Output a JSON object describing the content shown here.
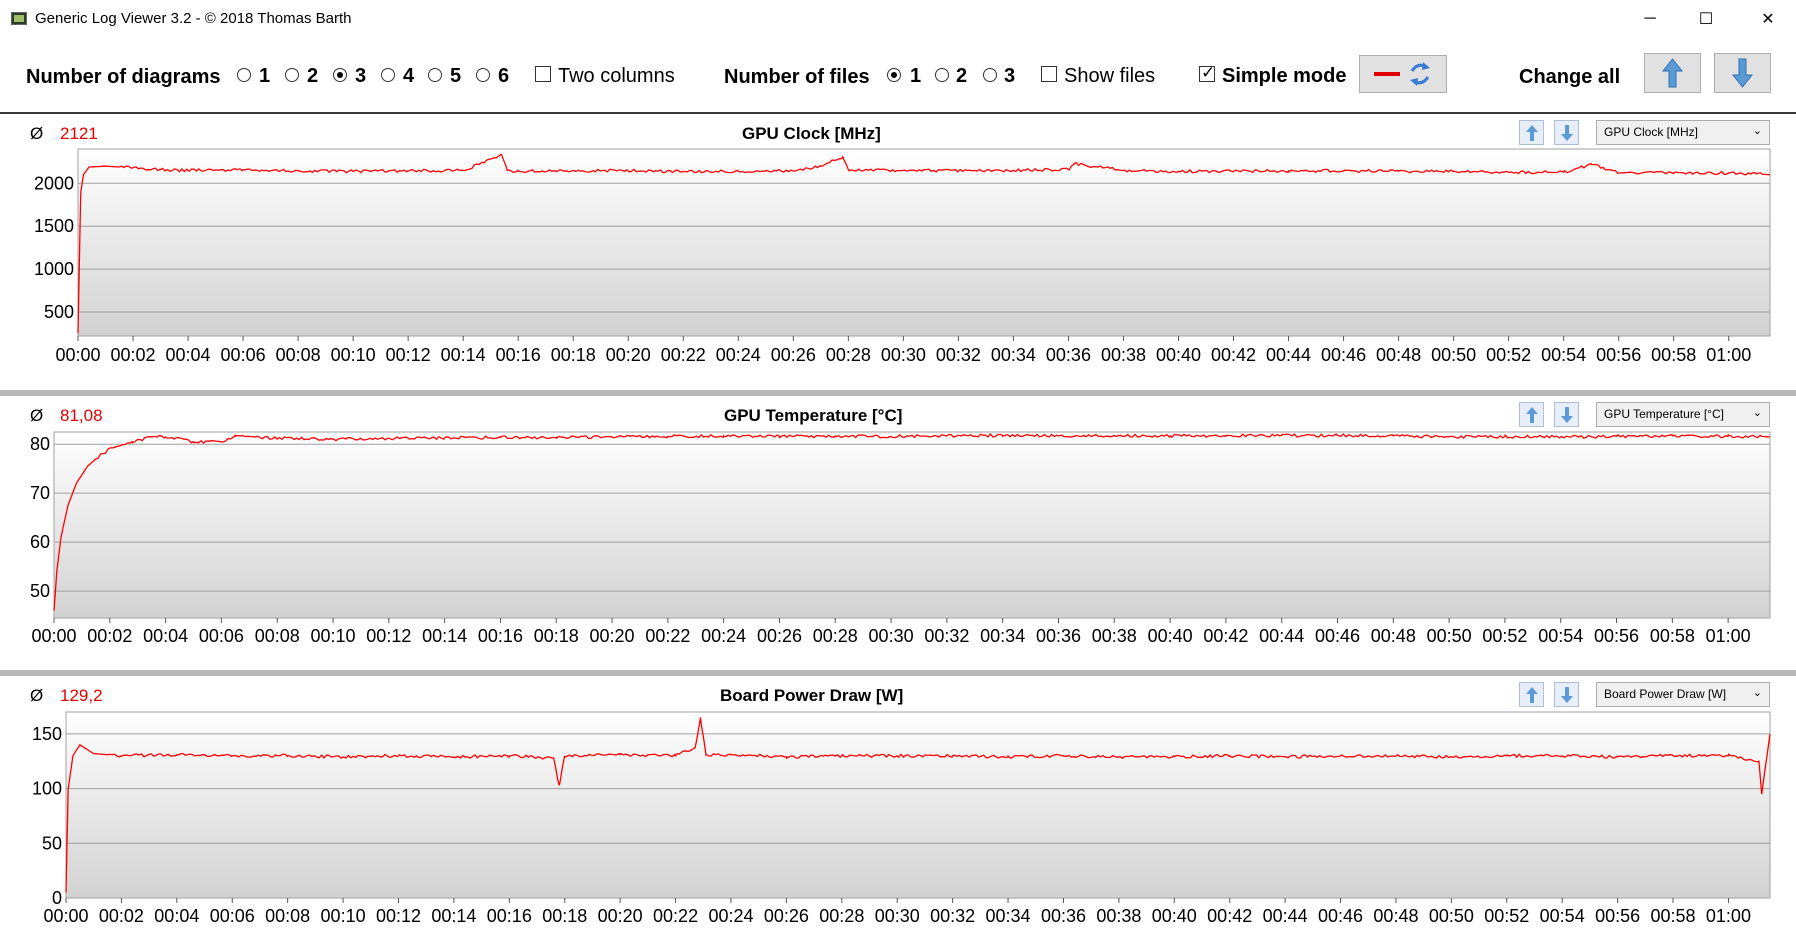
{
  "window": {
    "title": "Generic Log Viewer 3.2 - © 2018 Thomas Barth",
    "minimize_glyph": "─",
    "maximize_glyph": "☐",
    "close_glyph": "✕"
  },
  "toolbar": {
    "num_diagrams_label": "Number of diagrams",
    "diagram_options": [
      "1",
      "2",
      "3",
      "4",
      "5",
      "6"
    ],
    "diagram_selected": "3",
    "two_columns_label": "Two columns",
    "two_columns_checked": false,
    "num_files_label": "Number of files",
    "file_options": [
      "1",
      "2",
      "3"
    ],
    "file_selected": "1",
    "show_files_label": "Show files",
    "show_files_checked": false,
    "simple_mode_label": "Simple mode",
    "simple_mode_checked": true,
    "change_all_label": "Change all",
    "line_color": "#e00000",
    "icons": [
      "red-line-icon",
      "refresh-icon",
      "arrow-up-icon",
      "arrow-down-icon"
    ]
  },
  "colors": {
    "series": "#ff0000",
    "average": "#e00000",
    "plot_top": "#ffffff",
    "plot_bottom": "#d2d2d2",
    "grid": "#a0a0a0",
    "button_blue": "#5b9bd5"
  },
  "time_ticks": [
    "00:00",
    "00:02",
    "00:04",
    "00:06",
    "00:08",
    "00:10",
    "00:12",
    "00:14",
    "00:16",
    "00:18",
    "00:20",
    "00:22",
    "00:24",
    "00:26",
    "00:28",
    "00:30",
    "00:32",
    "00:34",
    "00:36",
    "00:38",
    "00:40",
    "00:42",
    "00:44",
    "00:46",
    "00:48",
    "00:50",
    "00:52",
    "00:54",
    "00:56",
    "00:58",
    "01:00"
  ],
  "charts": [
    {
      "average_symbol": "Ø",
      "average": "2121",
      "title": "GPU Clock [MHz]",
      "select_value": "GPU Clock [MHz]"
    },
    {
      "average_symbol": "Ø",
      "average": "81,08",
      "title": "GPU Temperature [°C]",
      "select_value": "GPU Temperature [°C]"
    },
    {
      "average_symbol": "Ø",
      "average": "129,2",
      "title": "Board Power Draw [W]",
      "select_value": "Board Power Draw [W]"
    }
  ],
  "chart_data": [
    {
      "type": "line",
      "title": "GPU Clock [MHz]",
      "x_unit": "minutes",
      "xlim": [
        0,
        61.5
      ],
      "ylim": [
        220,
        2400
      ],
      "yticks": [
        500,
        1000,
        1500,
        2000
      ],
      "grid": true,
      "series": [
        {
          "x": [
            0,
            0.1,
            0.2,
            0.4,
            1,
            2,
            3,
            4,
            6,
            8,
            10,
            12,
            14,
            15.4,
            15.6,
            16,
            18,
            20,
            22,
            24,
            26,
            27,
            27.8,
            28,
            30,
            32,
            34,
            36,
            36.2,
            38,
            40,
            42,
            44,
            46,
            48,
            50,
            52,
            54,
            55,
            56,
            58,
            60,
            61,
            61.5
          ],
          "y": [
            250,
            1900,
            2100,
            2190,
            2200,
            2180,
            2160,
            2150,
            2160,
            2145,
            2140,
            2145,
            2150,
            2330,
            2150,
            2140,
            2150,
            2145,
            2140,
            2140,
            2145,
            2200,
            2310,
            2160,
            2150,
            2145,
            2150,
            2160,
            2230,
            2150,
            2140,
            2140,
            2145,
            2145,
            2140,
            2140,
            2130,
            2130,
            2220,
            2120,
            2120,
            2120,
            2110,
            2100
          ]
        }
      ]
    },
    {
      "type": "line",
      "title": "GPU Temperature [°C]",
      "x_unit": "minutes",
      "xlim": [
        0,
        61.5
      ],
      "ylim": [
        44.5,
        82.5
      ],
      "yticks": [
        50,
        60,
        70,
        80
      ],
      "grid": true,
      "series": [
        {
          "x": [
            0,
            0.1,
            0.25,
            0.5,
            0.8,
            1.2,
            1.7,
            2.2,
            2.8,
            3.5,
            4,
            5,
            6,
            6.5,
            8,
            10,
            12,
            14,
            16,
            18,
            20,
            22,
            24,
            26,
            28,
            30,
            32,
            34,
            36,
            38,
            40,
            42,
            44,
            46,
            48,
            50,
            52,
            54,
            56,
            58,
            60,
            61.2,
            61.5
          ],
          "y": [
            46,
            54,
            61,
            67.5,
            72,
            75.5,
            78,
            79.5,
            80.5,
            81.5,
            81.5,
            80.5,
            80.5,
            81.8,
            81.2,
            81,
            81.2,
            81.3,
            81.4,
            81.4,
            81.5,
            81.6,
            81.7,
            81.6,
            81.7,
            81.6,
            81.7,
            81.8,
            81.7,
            81.8,
            81.7,
            81.8,
            81.8,
            81.8,
            81.7,
            81.5,
            81.6,
            81.5,
            81.6,
            81.7,
            81.6,
            81.6,
            81.5
          ]
        }
      ]
    },
    {
      "type": "line",
      "title": "Board Power Draw [W]",
      "x_unit": "minutes",
      "xlim": [
        0,
        61.5
      ],
      "ylim": [
        0,
        170
      ],
      "yticks": [
        0,
        50,
        100,
        150
      ],
      "grid": true,
      "series": [
        {
          "x": [
            0,
            0.08,
            0.25,
            0.5,
            1,
            2,
            4,
            6,
            8,
            10,
            12,
            14,
            16,
            17.6,
            17.8,
            18,
            20,
            22,
            22.7,
            22.9,
            23.1,
            24,
            26,
            28,
            30,
            32,
            34,
            36,
            38,
            40,
            42,
            44,
            46,
            48,
            50,
            52,
            54,
            56,
            58,
            60,
            61.1,
            61.2,
            61.5
          ],
          "y": [
            5,
            100,
            130,
            140,
            132,
            130,
            131,
            130,
            130,
            129,
            130,
            129,
            130,
            128,
            103,
            130,
            131,
            130,
            137,
            165,
            131,
            131,
            129,
            130,
            130,
            130,
            129,
            130,
            129,
            129,
            130,
            129,
            130,
            130,
            129,
            130,
            130,
            129,
            130,
            130,
            125,
            95,
            150
          ]
        }
      ]
    }
  ]
}
